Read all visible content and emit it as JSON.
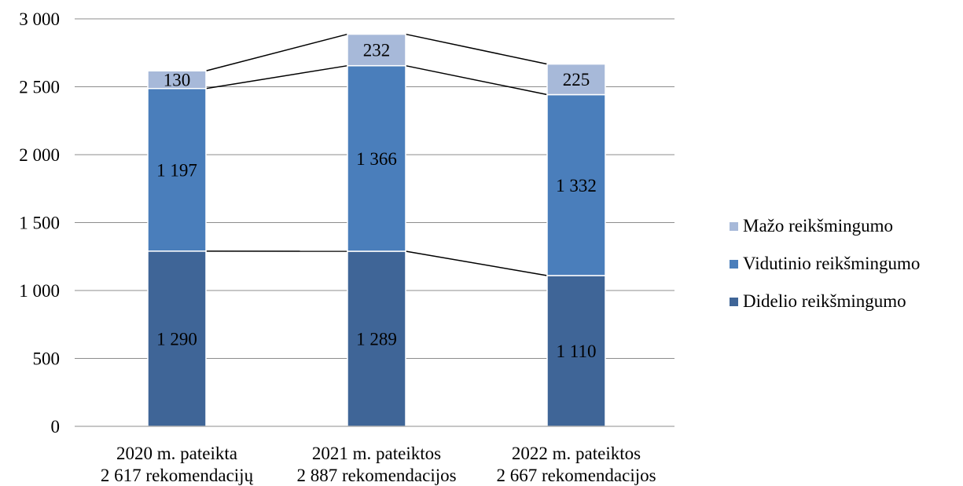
{
  "chart_data": {
    "type": "bar",
    "stacked": true,
    "categories": [
      [
        "2020 m. pateikta",
        "2 617 rekomendacijų"
      ],
      [
        "2021 m. pateiktos",
        "2 887 rekomendacijos"
      ],
      [
        "2022 m. pateiktos",
        "2 667 rekomendacijos"
      ]
    ],
    "series": [
      {
        "name": "Didelio reikšmingumo",
        "values": [
          1290,
          1289,
          1110
        ],
        "labels": [
          "1 290",
          "1 289",
          "1 110"
        ],
        "color": "#3f6597"
      },
      {
        "name": "Vidutinio reikšmingumo",
        "values": [
          1197,
          1366,
          1332
        ],
        "labels": [
          "1 197",
          "1 366",
          "1 332"
        ],
        "color": "#4a7ebb"
      },
      {
        "name": "Mažo reikšmingumo",
        "values": [
          130,
          232,
          225
        ],
        "labels": [
          "130",
          "232",
          "225"
        ],
        "color": "#a7b9d9"
      }
    ],
    "ylim": [
      0,
      3000
    ],
    "yticks": [
      0,
      500,
      1000,
      1500,
      2000,
      2500,
      3000
    ],
    "ytick_labels": [
      "0",
      "500",
      "1 000",
      "1 500",
      "2 000",
      "2 500",
      "3 000"
    ],
    "series_lines": true,
    "grid": true,
    "legend_position": "right",
    "title": "",
    "xlabel": "",
    "ylabel": ""
  }
}
